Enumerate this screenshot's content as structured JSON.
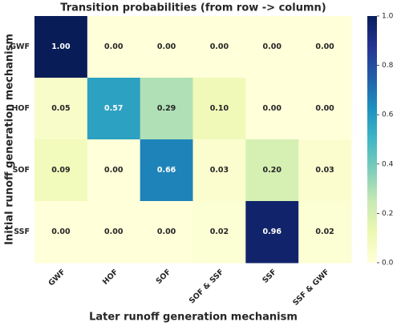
{
  "chart_data": {
    "type": "heatmap",
    "title": "Transition probabilities (from row -> column)",
    "x_label": "Later runoff generation mechanism",
    "y_label": "Initial runoff generation mechanism",
    "categories": [
      "GWF",
      "HOF",
      "SOF",
      "SOF & SSF",
      "SSF",
      "SSF & GWF"
    ],
    "rows": [
      "GWF",
      "HOF",
      "SOF",
      "SSF"
    ],
    "values": [
      [
        1,
        0,
        0,
        0,
        0,
        0
      ],
      [
        0.05,
        0.57,
        0.29,
        0.1,
        0,
        0
      ],
      [
        0.09,
        0,
        0.66,
        0.03,
        0.2,
        0.03
      ],
      [
        0,
        0,
        0,
        0.02,
        0.96,
        0.02
      ]
    ],
    "value_labels": [
      [
        "1.00",
        "0.00",
        "0.00",
        "0.00",
        "0.00",
        "0.00"
      ],
      [
        "0.05",
        "0.57",
        "0.29",
        "0.10",
        "0.00",
        "0.00"
      ],
      [
        "0.09",
        "0.00",
        "0.66",
        "0.03",
        "0.20",
        "0.03"
      ],
      [
        "0.00",
        "0.00",
        "0.00",
        "0.02",
        "0.96",
        "0.02"
      ]
    ],
    "colormap": "YlGnBu",
    "clim": [
      0,
      1
    ],
    "cticks": [
      {
        "value": 0,
        "label": "0.0"
      },
      0.2,
      0.4,
      0.6,
      0.8,
      {
        "value": 1,
        "label": "1.0"
      }
    ]
  }
}
